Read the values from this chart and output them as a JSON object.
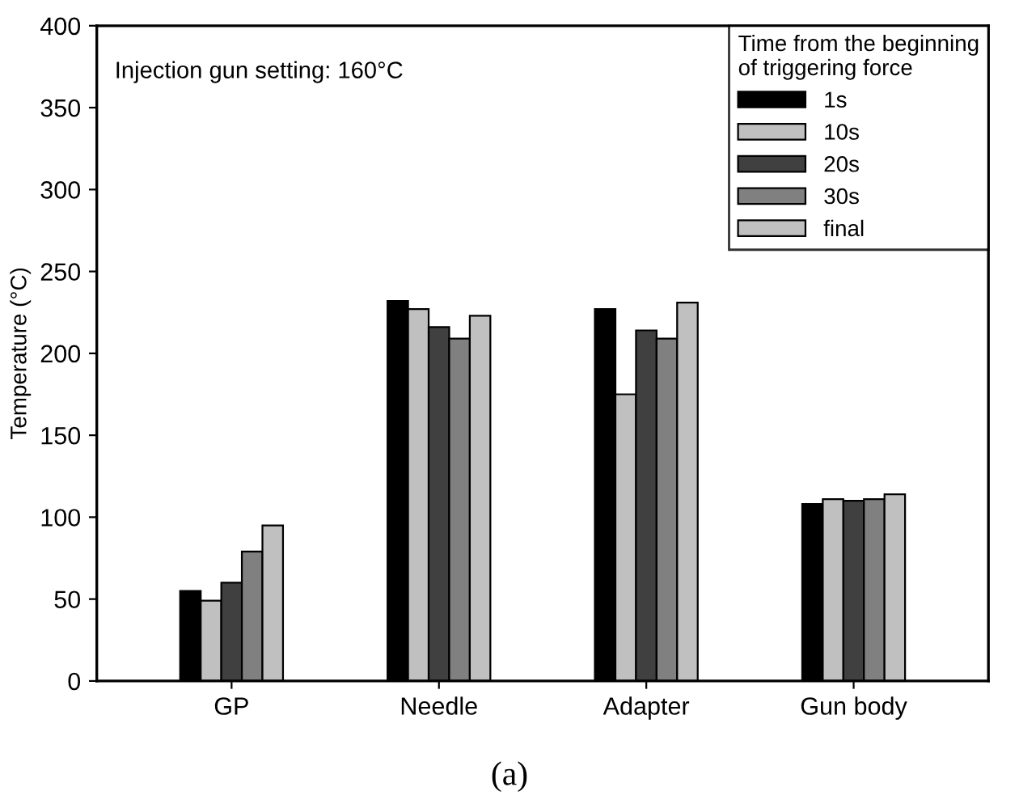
{
  "chart_data": {
    "type": "bar",
    "ylabel": "Temperature (°C)",
    "legend_title": "Time from the beginning\nof triggering force",
    "categories": [
      "GP",
      "Needle",
      "Adapter",
      "Gun body"
    ],
    "series": [
      {
        "name": "1s",
        "color": "#000000",
        "values": [
          55,
          232,
          227,
          108
        ]
      },
      {
        "name": "10s",
        "color": "#c0c0c0",
        "values": [
          49,
          227,
          175,
          111
        ]
      },
      {
        "name": "20s",
        "color": "#404040",
        "values": [
          60,
          216,
          214,
          110
        ]
      },
      {
        "name": "30s",
        "color": "#808080",
        "values": [
          79,
          209,
          209,
          111
        ]
      },
      {
        "name": "final",
        "color": "#c0c0c0",
        "values": [
          95,
          223,
          231,
          114
        ]
      }
    ],
    "ylim": [
      0,
      400
    ],
    "yticks": [
      0,
      50,
      100,
      150,
      200,
      250,
      300,
      350,
      400
    ],
    "legend": "top right",
    "grid": false,
    "annotations": [
      "Injection gun setting: 160°C",
      "(a)"
    ]
  }
}
